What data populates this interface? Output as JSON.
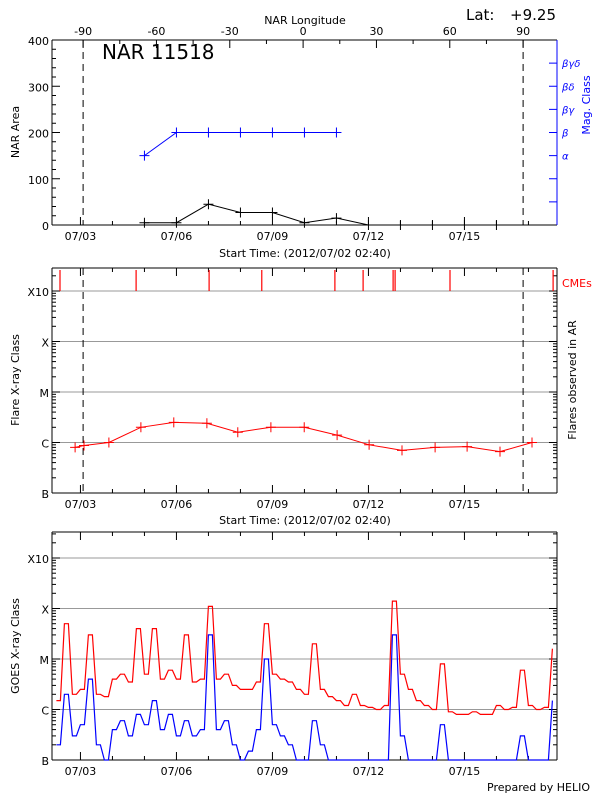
{
  "footer": {
    "prepared_by": "Prepared by HELIO"
  },
  "colors": {
    "axis": "#000000",
    "grid": "#999999",
    "mag_class": "#0000ff",
    "flare": "#ff0000",
    "goes_long": "#ff0000",
    "goes_short": "#0000ff",
    "cme": "#ff0000"
  },
  "chart_data": [
    {
      "type": "line",
      "title": "NAR 11518",
      "lat_label": "Lat:",
      "lat_value": "+9.25",
      "top_axis_label": "NAR Longitude",
      "top_ticks": [
        -90,
        -60,
        -30,
        0,
        30,
        60,
        90
      ],
      "ylabel": "NAR Area",
      "y2label": "Mag. Class",
      "xlabel": "Start Time: (2012/07/02 02:40)",
      "ylim": [
        0,
        400
      ],
      "yticks": [
        0,
        100,
        200,
        300,
        400
      ],
      "xticks": [
        "07/03",
        "07/06",
        "07/09",
        "07/12",
        "07/15"
      ],
      "y2_classes": [
        "α",
        "β",
        "βγ",
        "βδ",
        "βγδ"
      ],
      "limb_crossings": [
        "07/03 02:00",
        "07/16 20:00"
      ],
      "area_series": {
        "times": [
          "07/05 00:00",
          "07/06 00:00",
          "07/07 00:00",
          "07/08 00:00",
          "07/09 00:00",
          "07/10 00:00",
          "07/11 00:00",
          "07/12 00:00",
          "07/13 00:00",
          "07/14 00:00",
          "07/15 00:00",
          "07/16 00:00"
        ],
        "values": [
          5,
          5,
          45,
          27,
          27,
          5,
          15,
          0,
          0,
          0,
          0,
          0
        ]
      },
      "mag_series": {
        "times": [
          "07/05 00:00",
          "07/06 00:00",
          "07/07 00:00",
          "07/08 00:00",
          "07/09 00:00",
          "07/10 00:00",
          "07/11 00:00"
        ],
        "classes": [
          "α",
          "β",
          "β",
          "β",
          "β",
          "β",
          "β"
        ]
      }
    },
    {
      "type": "line",
      "ylabel": "Flare X-ray Class",
      "y2label": "Flares observed in AR",
      "xlabel": "Start Time: (2012/07/02 02:40)",
      "yscale": "log",
      "ylim_flux": [
        1e-07,
        0.001
      ],
      "yticks": [
        {
          "label": "B",
          "flux": 1e-07
        },
        {
          "label": "C",
          "flux": 1e-06
        },
        {
          "label": "M",
          "flux": 1e-05
        },
        {
          "label": "X",
          "flux": 0.0001
        },
        {
          "label": "X10",
          "flux": 0.001
        }
      ],
      "xticks": [
        "07/03",
        "07/06",
        "07/09",
        "07/12",
        "07/15"
      ],
      "grid": true,
      "limb_crossings": [
        "07/03 02:00",
        "07/16 20:00"
      ],
      "cme_label": "CMEs",
      "cme_times": [
        "07/02 08:40",
        "07/04 17:45",
        "07/07 00:30",
        "07/08 16:00",
        "07/10 22:50",
        "07/11 20:00",
        "07/12 18:30",
        "07/12 20:00",
        "07/14 13:10",
        "07/17 18:30"
      ],
      "flare_series": {
        "times": [
          "07/02 20:00",
          "07/03 02:40",
          "07/03 21:20",
          "07/04 21:20",
          "07/05 22:00",
          "07/06 22:50",
          "07/07 22:00",
          "07/08 22:50",
          "07/09 23:50",
          "07/11 00:30",
          "07/12 00:30",
          "07/13 01:10",
          "07/14 02:00",
          "07/15 02:00",
          "07/16 02:40",
          "07/17 02:40"
        ],
        "flux": [
          8e-07,
          8.7e-07,
          1e-06,
          2e-06,
          2.5e-06,
          2.4e-06,
          1.6e-06,
          2e-06,
          2e-06,
          1.4e-06,
          9e-07,
          7e-07,
          8e-07,
          8.3e-07,
          6.6e-07,
          1e-06
        ]
      }
    },
    {
      "type": "line",
      "ylabel": "GOES X-ray Class",
      "yscale": "log",
      "ylim_flux": [
        1e-07,
        0.001
      ],
      "yticks": [
        {
          "label": "B",
          "flux": 1e-07
        },
        {
          "label": "C",
          "flux": 1e-06
        },
        {
          "label": "M",
          "flux": 1e-05
        },
        {
          "label": "X",
          "flux": 0.0001
        },
        {
          "label": "X10",
          "flux": 0.001
        }
      ],
      "xticks": [
        "07/03",
        "07/06",
        "07/09",
        "07/12",
        "07/15"
      ],
      "grid": true,
      "series_start": "07/02 06:00",
      "series_step_hours": 6,
      "long_channel_flux": [
        1.5e-06,
        5e-05,
        2e-06,
        2.5e-06,
        3e-05,
        2e-06,
        1.8e-06,
        4e-06,
        5e-06,
        3.5e-06,
        4e-05,
        5e-06,
        4e-05,
        4e-06,
        6e-06,
        4e-06,
        3e-05,
        3.5e-06,
        4e-06,
        0.00011,
        4e-06,
        5e-06,
        3e-06,
        2.5e-06,
        2.5e-06,
        3.5e-06,
        5e-05,
        5e-06,
        4e-06,
        3.5e-06,
        2.5e-06,
        2e-06,
        2e-05,
        2.5e-06,
        1.8e-06,
        1.5e-06,
        1.2e-06,
        2e-06,
        1.2e-06,
        1.1e-06,
        1e-06,
        1.2e-06,
        0.00014,
        5e-06,
        2.5e-06,
        1.5e-06,
        1.2e-06,
        1e-06,
        8e-06,
        9e-07,
        8e-07,
        8e-07,
        9e-07,
        8e-07,
        8e-07,
        1.2e-06,
        1e-06,
        1.1e-06,
        6e-06,
        1.2e-06,
        1e-06,
        1.1e-06,
        1.6e-05
      ],
      "short_channel_flux": [
        2e-07,
        2e-06,
        3e-07,
        5e-07,
        4e-06,
        2e-07,
        1e-07,
        4e-07,
        6e-07,
        3e-07,
        8e-07,
        5e-07,
        1.5e-06,
        4e-07,
        8e-07,
        3e-07,
        6e-07,
        3e-07,
        4e-07,
        3e-05,
        4e-07,
        6e-07,
        2e-07,
        1e-07,
        1.5e-07,
        4e-07,
        1e-05,
        5e-07,
        3e-07,
        2e-07,
        1e-07,
        1e-07,
        6e-07,
        2e-07,
        1e-07,
        1e-07,
        1e-07,
        1e-07,
        1e-07,
        1e-07,
        1e-07,
        1e-07,
        3e-05,
        3e-07,
        1e-07,
        1e-07,
        1e-07,
        1e-07,
        5e-07,
        1e-07,
        1e-07,
        1e-07,
        1e-07,
        1e-07,
        1e-07,
        1e-07,
        1e-07,
        1e-07,
        3e-07,
        1e-07,
        1e-07,
        1e-07,
        1.5e-06
      ]
    }
  ]
}
